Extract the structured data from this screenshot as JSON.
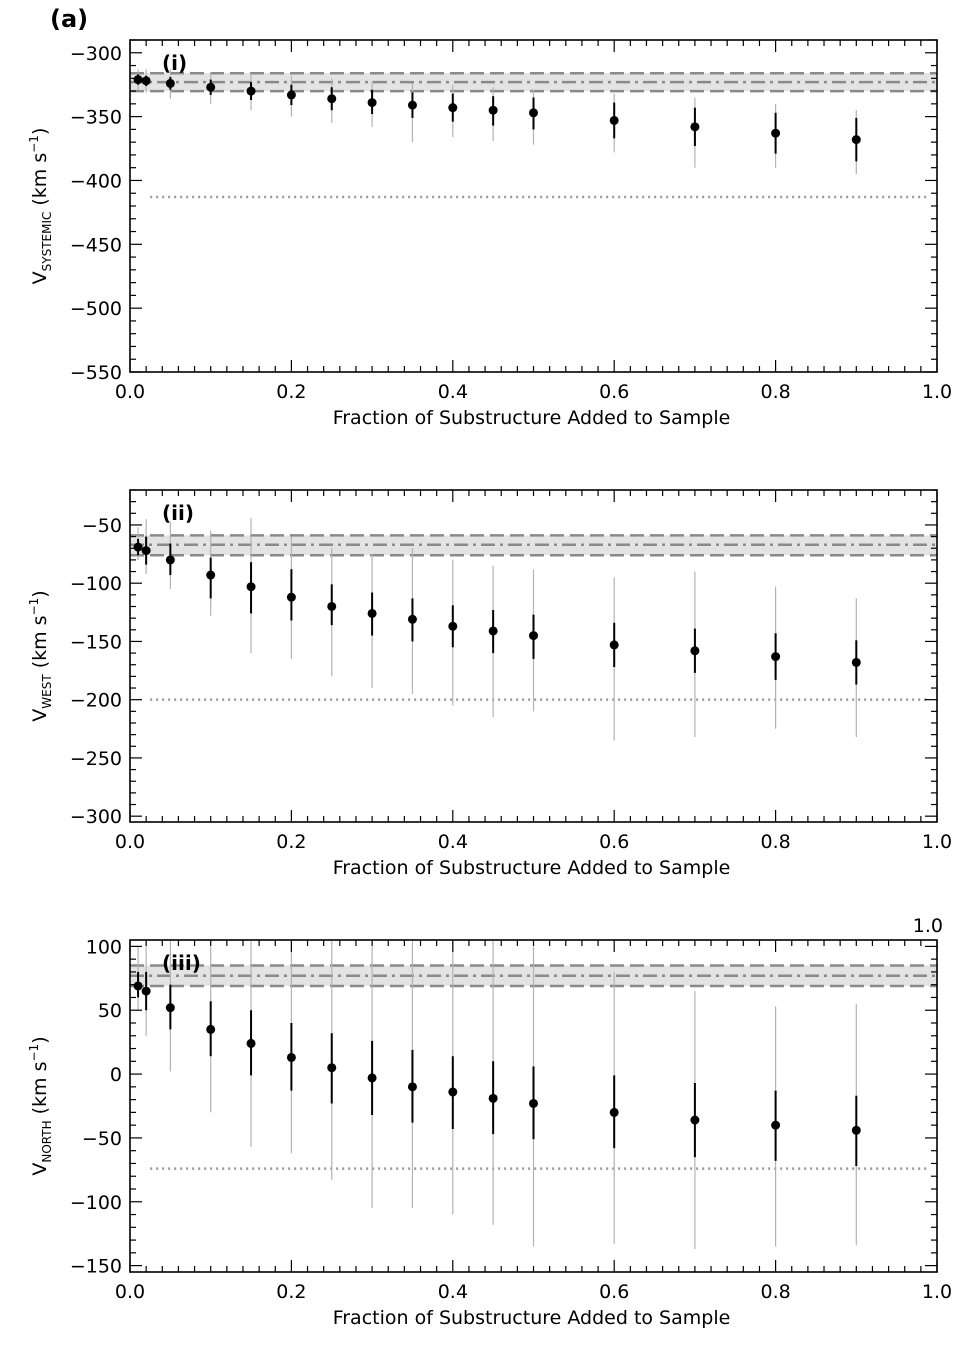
{
  "figure_label": "(a)",
  "chart_data": [
    {
      "type": "scatter",
      "panel_label": "(i)",
      "xlabel": "Fraction of Substructure Added to Sample",
      "ylabel_main": "V",
      "ylabel_sub": "SYSTEMIC",
      "ylabel_units": "(km s",
      "ylabel_exp": "−1",
      "ylabel_close": ")",
      "top_right_label": "",
      "xlim": [
        0.0,
        1.0
      ],
      "ylim": [
        -550,
        -290
      ],
      "xticks": [
        0.0,
        0.2,
        0.4,
        0.6,
        0.8,
        1.0
      ],
      "xtick_labels": [
        "0.0",
        "0.2",
        "0.4",
        "0.6",
        "0.8",
        "1.0"
      ],
      "yticks": [
        -550,
        -500,
        -450,
        -400,
        -350,
        -300
      ],
      "ytick_labels": [
        "−550",
        "−500",
        "−450",
        "−400",
        "−350",
        "−300"
      ],
      "reference_value": -323,
      "reference_band": [
        -330,
        -316
      ],
      "dotted_line": -413,
      "x": [
        0.01,
        0.02,
        0.05,
        0.1,
        0.15,
        0.2,
        0.25,
        0.3,
        0.35,
        0.4,
        0.45,
        0.5,
        0.6,
        0.7,
        0.8,
        0.9
      ],
      "y": [
        -321,
        -322,
        -324,
        -327,
        -330,
        -333,
        -336,
        -339,
        -341,
        -343,
        -345,
        -347,
        -353,
        -358,
        -363,
        -368
      ],
      "err_inner_low": [
        -325,
        -326,
        -329,
        -333,
        -337,
        -341,
        -345,
        -348,
        -351,
        -354,
        -357,
        -360,
        -367,
        -373,
        -379,
        -385
      ],
      "err_inner_high": [
        -317,
        -318,
        -319,
        -321,
        -323,
        -325,
        -327,
        -329,
        -331,
        -332,
        -334,
        -335,
        -339,
        -343,
        -347,
        -351
      ],
      "err_outer_low": [
        -329,
        -331,
        -336,
        -340,
        -345,
        -350,
        -355,
        -358,
        -370,
        -366,
        -369,
        -372,
        -378,
        -390,
        -390,
        -395
      ],
      "err_outer_high": [
        -313,
        -313,
        -313,
        -315,
        -316,
        -318,
        -320,
        -322,
        -324,
        -325,
        -327,
        -329,
        -332,
        -335,
        -340,
        -345
      ]
    },
    {
      "type": "scatter",
      "panel_label": "(ii)",
      "xlabel": "Fraction of Substructure Added to Sample",
      "ylabel_main": "V",
      "ylabel_sub": "WEST",
      "ylabel_units": "(km s",
      "ylabel_exp": "−1",
      "ylabel_close": ")",
      "top_right_label": "",
      "xlim": [
        0.0,
        1.0
      ],
      "ylim": [
        -305,
        -20
      ],
      "xticks": [
        0.0,
        0.2,
        0.4,
        0.6,
        0.8,
        1.0
      ],
      "xtick_labels": [
        "0.0",
        "0.2",
        "0.4",
        "0.6",
        "0.8",
        "1.0"
      ],
      "yticks": [
        -300,
        -250,
        -200,
        -150,
        -100,
        -50
      ],
      "ytick_labels": [
        "−300",
        "−250",
        "−200",
        "−150",
        "−100",
        "−50"
      ],
      "reference_value": -67,
      "reference_band": [
        -76,
        -59
      ],
      "dotted_line": -200,
      "x": [
        0.01,
        0.02,
        0.05,
        0.1,
        0.15,
        0.2,
        0.25,
        0.3,
        0.35,
        0.4,
        0.45,
        0.5,
        0.6,
        0.7,
        0.8,
        0.9
      ],
      "y": [
        -69,
        -72,
        -80,
        -93,
        -103,
        -112,
        -120,
        -126,
        -131,
        -137,
        -141,
        -145,
        -153,
        -158,
        -163,
        -168
      ],
      "err_inner_low": [
        -76,
        -84,
        -93,
        -113,
        -126,
        -132,
        -136,
        -145,
        -150,
        -155,
        -160,
        -165,
        -172,
        -177,
        -183,
        -187
      ],
      "err_inner_high": [
        -62,
        -60,
        -66,
        -78,
        -82,
        -88,
        -101,
        -108,
        -113,
        -119,
        -123,
        -127,
        -134,
        -139,
        -143,
        -149
      ],
      "err_outer_low": [
        -80,
        -92,
        -105,
        -128,
        -160,
        -165,
        -180,
        -190,
        -195,
        -205,
        -215,
        -210,
        -235,
        -232,
        -225,
        -232
      ],
      "err_outer_high": [
        -52,
        -45,
        -47,
        -55,
        -44,
        -60,
        -70,
        -75,
        -70,
        -80,
        -85,
        -88,
        -95,
        -90,
        -103,
        -113
      ]
    },
    {
      "type": "scatter",
      "panel_label": "(iii)",
      "xlabel": "Fraction of Substructure Added to Sample",
      "ylabel_main": "V",
      "ylabel_sub": "NORTH",
      "ylabel_units": "(km s",
      "ylabel_exp": "−1",
      "ylabel_close": ")",
      "top_right_label": "1.0",
      "xlim": [
        0.0,
        1.0
      ],
      "ylim": [
        -155,
        105
      ],
      "xticks": [
        0.0,
        0.2,
        0.4,
        0.6,
        0.8,
        1.0
      ],
      "xtick_labels": [
        "0.0",
        "0.2",
        "0.4",
        "0.6",
        "0.8",
        "1.0"
      ],
      "yticks": [
        -150,
        -100,
        -50,
        0,
        50,
        100
      ],
      "ytick_labels": [
        "−150",
        "−100",
        "−50",
        "0",
        "50",
        "100"
      ],
      "reference_value": 77,
      "reference_band": [
        69,
        85
      ],
      "dotted_line": -74,
      "x": [
        0.01,
        0.02,
        0.05,
        0.1,
        0.15,
        0.2,
        0.25,
        0.3,
        0.35,
        0.4,
        0.45,
        0.5,
        0.6,
        0.7,
        0.8,
        0.9
      ],
      "y": [
        69,
        65,
        52,
        35,
        24,
        13,
        5,
        -3,
        -10,
        -14,
        -19,
        -23,
        -30,
        -36,
        -40,
        -44
      ],
      "err_inner_low": [
        60,
        50,
        35,
        14,
        -1,
        -13,
        -23,
        -32,
        -38,
        -43,
        -47,
        -51,
        -58,
        -65,
        -68,
        -72
      ],
      "err_inner_high": [
        80,
        80,
        70,
        57,
        50,
        40,
        32,
        26,
        19,
        14,
        10,
        6,
        -1,
        -7,
        -13,
        -17
      ],
      "err_outer_low": [
        50,
        30,
        2,
        -30,
        -57,
        -62,
        -83,
        -105,
        -105,
        -110,
        -118,
        -135,
        -133,
        -137,
        -135,
        -134
      ],
      "err_outer_high": [
        100,
        105,
        105,
        100,
        105,
        105,
        105,
        105,
        105,
        105,
        105,
        100,
        80,
        65,
        53,
        55
      ]
    }
  ]
}
